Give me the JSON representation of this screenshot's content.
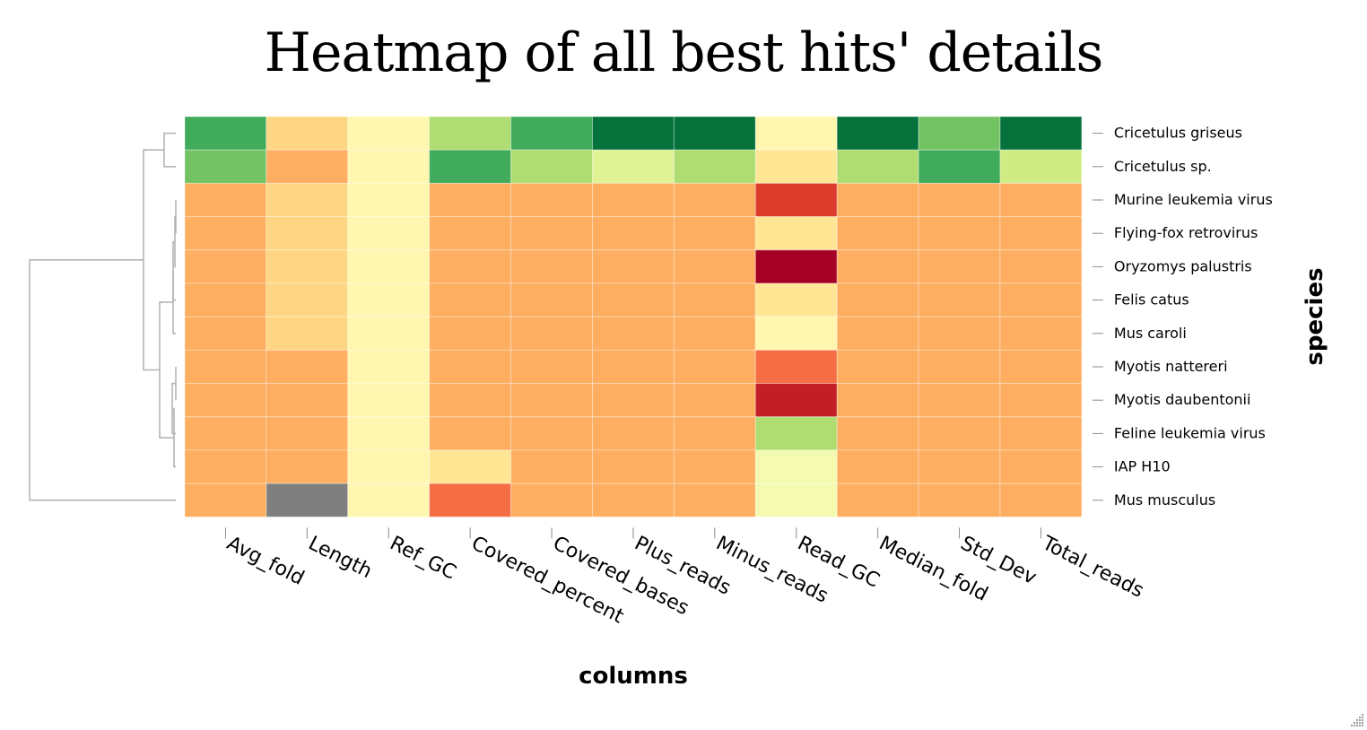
{
  "title": "Heatmap of all best hits' details",
  "chart_data": {
    "type": "heatmap",
    "title": "Heatmap of all best hits' details",
    "xlabel": "columns",
    "ylabel": "species",
    "columns": [
      "Avg_fold",
      "Length",
      "Ref_GC",
      "Covered_percent",
      "Covered_bases",
      "Plus_reads",
      "Minus_reads",
      "Read_GC",
      "Median_fold",
      "Std_Dev",
      "Total_reads"
    ],
    "rows": [
      "Cricetulus griseus",
      "Cricetulus sp.",
      "Murine leukemia virus",
      "Flying-fox retrovirus",
      "Oryzomys palustris",
      "Felis catus",
      "Mus caroli",
      "Myotis nattereri",
      "Myotis daubentonii",
      "Feline leukemia virus",
      "IAP H10",
      "Mus musculus"
    ],
    "values": [
      [
        0.85,
        0.38,
        0.47,
        0.68,
        0.85,
        0.98,
        0.98,
        0.47,
        0.98,
        0.78,
        0.98
      ],
      [
        0.78,
        0.3,
        0.47,
        0.85,
        0.68,
        0.58,
        0.68,
        0.42,
        0.68,
        0.85,
        0.62
      ],
      [
        0.3,
        0.38,
        0.47,
        0.3,
        0.3,
        0.3,
        0.3,
        0.12,
        0.3,
        0.3,
        0.3
      ],
      [
        0.3,
        0.38,
        0.47,
        0.3,
        0.3,
        0.3,
        0.3,
        0.42,
        0.3,
        0.3,
        0.3
      ],
      [
        0.3,
        0.38,
        0.47,
        0.3,
        0.3,
        0.3,
        0.3,
        0.0,
        0.3,
        0.3,
        0.3
      ],
      [
        0.3,
        0.38,
        0.47,
        0.3,
        0.3,
        0.3,
        0.3,
        0.42,
        0.3,
        0.3,
        0.3
      ],
      [
        0.3,
        0.38,
        0.47,
        0.3,
        0.3,
        0.3,
        0.3,
        0.47,
        0.3,
        0.3,
        0.3
      ],
      [
        0.3,
        0.3,
        0.47,
        0.3,
        0.3,
        0.3,
        0.3,
        0.2,
        0.3,
        0.3,
        0.3
      ],
      [
        0.3,
        0.3,
        0.47,
        0.3,
        0.3,
        0.3,
        0.3,
        0.06,
        0.3,
        0.3,
        0.3
      ],
      [
        0.3,
        0.3,
        0.47,
        0.3,
        0.3,
        0.3,
        0.3,
        0.68,
        0.3,
        0.3,
        0.3
      ],
      [
        0.3,
        0.3,
        0.47,
        0.42,
        0.3,
        0.3,
        0.3,
        0.53,
        0.3,
        0.3,
        0.3
      ],
      [
        0.3,
        null,
        0.47,
        0.2,
        0.3,
        0.3,
        0.3,
        0.53,
        0.3,
        0.3,
        0.3
      ]
    ],
    "colormap": "RdYlGn",
    "missing_color": "#7f7f7f",
    "dendrogram": "rows",
    "legend": "none"
  }
}
